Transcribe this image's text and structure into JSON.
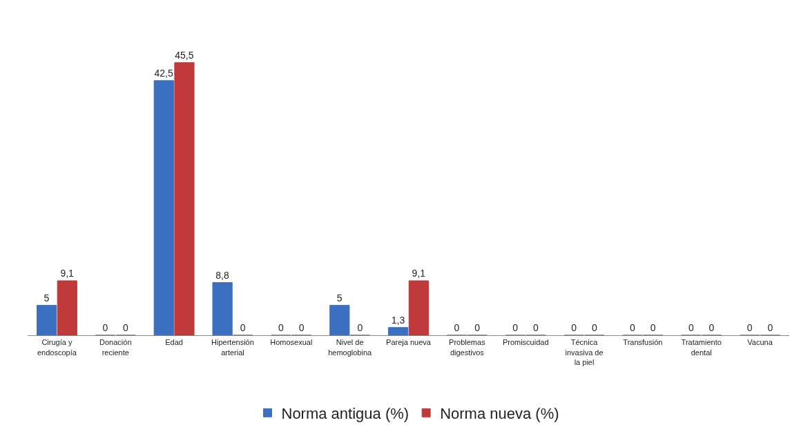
{
  "chart_data": {
    "type": "bar",
    "categories": [
      "Cirugía y endoscopía",
      "Donación reciente",
      "Edad",
      "Hipertensión arterial",
      "Homosexual",
      "Nivel de hemoglobina",
      "Pareja nueva",
      "Problemas digestivos",
      "Promiscuidad",
      "Técnica invasiva de la piel",
      "Transfusión",
      "Tratamiento dental",
      "Vacuna"
    ],
    "series": [
      {
        "name": "Norma antigua (%)",
        "color": "#3b6fbf",
        "values": [
          5,
          0,
          42.5,
          8.8,
          0,
          5,
          1.3,
          0,
          0,
          0,
          0,
          0,
          0
        ],
        "value_labels": [
          "5",
          "0",
          "42,5",
          "8,8",
          "0",
          "5",
          "1,3",
          "0",
          "0",
          "0",
          "0",
          "0",
          "0"
        ]
      },
      {
        "name": "Norma nueva (%)",
        "color": "#c0393b",
        "values": [
          9.1,
          0,
          45.5,
          0,
          0,
          0,
          9.1,
          0,
          0,
          0,
          0,
          0,
          0
        ],
        "value_labels": [
          "9,1",
          "0",
          "45,5",
          "0",
          "0",
          "0",
          "9,1",
          "0",
          "0",
          "0",
          "0",
          "0",
          "0"
        ]
      }
    ],
    "legend": "bottom"
  }
}
